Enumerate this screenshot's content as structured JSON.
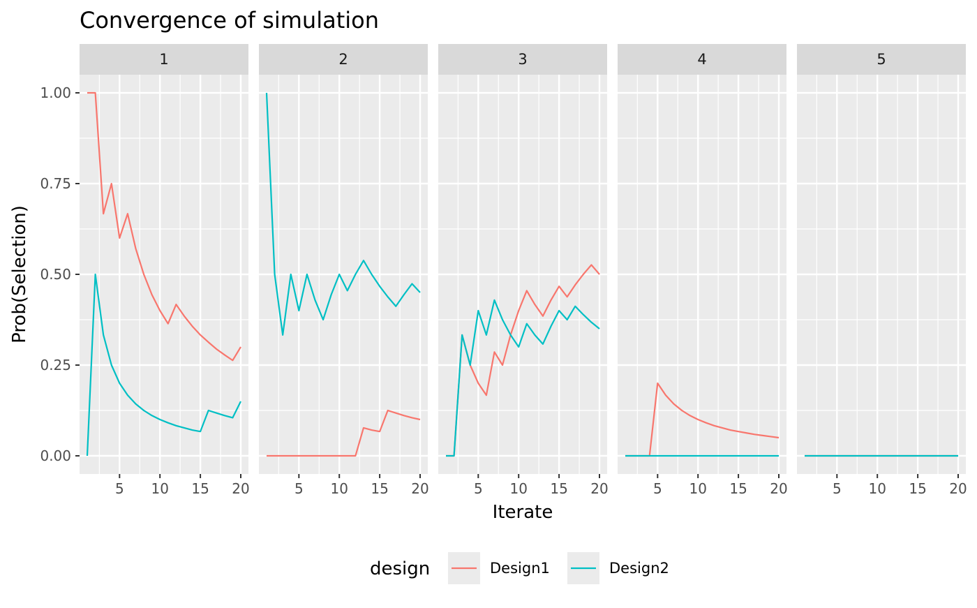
{
  "chart_data": {
    "type": "line",
    "title": "Convergence of simulation",
    "xlabel": "Iterate",
    "ylabel": "Prob(Selection)",
    "facet_labels": [
      "1",
      "2",
      "3",
      "4",
      "5"
    ],
    "x_ticks": [
      5,
      10,
      15,
      20
    ],
    "y_ticks": [
      "0.00",
      "0.25",
      "0.50",
      "0.75",
      "1.00"
    ],
    "xlim": [
      0.05,
      20.95
    ],
    "ylim": [
      -0.05,
      1.05
    ],
    "legend": {
      "title": "design",
      "placement": "bottom"
    },
    "colors": {
      "Design1": "#F8766D",
      "Design2": "#00BFC4"
    },
    "x": [
      1,
      2,
      3,
      4,
      5,
      6,
      7,
      8,
      9,
      10,
      11,
      12,
      13,
      14,
      15,
      16,
      17,
      18,
      19,
      20
    ],
    "panels": [
      {
        "label": "1",
        "series": [
          {
            "name": "Design1",
            "values": [
              1.0,
              1.0,
              0.667,
              0.75,
              0.6,
              0.667,
              0.571,
              0.5,
              0.444,
              0.4,
              0.364,
              0.417,
              0.385,
              0.357,
              0.333,
              0.313,
              0.294,
              0.278,
              0.263,
              0.3
            ]
          },
          {
            "name": "Design2",
            "values": [
              0.0,
              0.5,
              0.333,
              0.25,
              0.2,
              0.167,
              0.143,
              0.125,
              0.111,
              0.1,
              0.091,
              0.083,
              0.077,
              0.071,
              0.067,
              0.125,
              0.118,
              0.111,
              0.105,
              0.15
            ]
          }
        ]
      },
      {
        "label": "2",
        "series": [
          {
            "name": "Design1",
            "values": [
              0.0,
              0.0,
              0.0,
              0.0,
              0.0,
              0.0,
              0.0,
              0.0,
              0.0,
              0.0,
              0.0,
              0.0,
              0.077,
              0.071,
              0.067,
              0.125,
              0.118,
              0.111,
              0.105,
              0.1
            ]
          },
          {
            "name": "Design2",
            "values": [
              1.0,
              0.5,
              0.333,
              0.5,
              0.4,
              0.5,
              0.429,
              0.375,
              0.444,
              0.5,
              0.455,
              0.5,
              0.538,
              0.5,
              0.467,
              0.438,
              0.412,
              0.444,
              0.474,
              0.45
            ]
          }
        ]
      },
      {
        "label": "3",
        "series": [
          {
            "name": "Design1",
            "values": [
              0.0,
              0.0,
              0.333,
              0.25,
              0.2,
              0.167,
              0.286,
              0.25,
              0.333,
              0.4,
              0.455,
              0.417,
              0.385,
              0.429,
              0.467,
              0.438,
              0.471,
              0.5,
              0.526,
              0.5
            ]
          },
          {
            "name": "Design2",
            "values": [
              0.0,
              0.0,
              0.333,
              0.25,
              0.4,
              0.333,
              0.429,
              0.375,
              0.333,
              0.3,
              0.364,
              0.333,
              0.308,
              0.357,
              0.4,
              0.375,
              0.412,
              0.389,
              0.368,
              0.35
            ]
          }
        ]
      },
      {
        "label": "4",
        "series": [
          {
            "name": "Design1",
            "values": [
              0.0,
              0.0,
              0.0,
              0.0,
              0.2,
              0.167,
              0.143,
              0.125,
              0.111,
              0.1,
              0.091,
              0.083,
              0.077,
              0.071,
              0.067,
              0.063,
              0.059,
              0.056,
              0.053,
              0.05
            ]
          },
          {
            "name": "Design2",
            "values": [
              0.0,
              0.0,
              0.0,
              0.0,
              0.0,
              0.0,
              0.0,
              0.0,
              0.0,
              0.0,
              0.0,
              0.0,
              0.0,
              0.0,
              0.0,
              0.0,
              0.0,
              0.0,
              0.0,
              0.0
            ]
          }
        ]
      },
      {
        "label": "5",
        "series": [
          {
            "name": "Design1",
            "values": [
              0.0,
              0.0,
              0.0,
              0.0,
              0.0,
              0.0,
              0.0,
              0.0,
              0.0,
              0.0,
              0.0,
              0.0,
              0.0,
              0.0,
              0.0,
              0.0,
              0.0,
              0.0,
              0.0,
              0.0
            ]
          },
          {
            "name": "Design2",
            "values": [
              0.0,
              0.0,
              0.0,
              0.0,
              0.0,
              0.0,
              0.0,
              0.0,
              0.0,
              0.0,
              0.0,
              0.0,
              0.0,
              0.0,
              0.0,
              0.0,
              0.0,
              0.0,
              0.0,
              0.0
            ]
          }
        ]
      }
    ]
  }
}
